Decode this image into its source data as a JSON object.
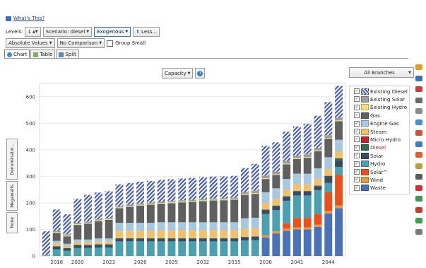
{
  "toolbar": {
    "whats_this": "What's This?",
    "levels_label": "Levels:",
    "levels_value": "1",
    "scenario": "Scenario: diesel",
    "exogenous": "Exogenous",
    "less": "Less...",
    "absolute": "Absolute Values",
    "comparison": "No Comparison",
    "group_small": "Group Small"
  },
  "tabs": [
    {
      "label": "Chart"
    },
    {
      "label": "Table"
    },
    {
      "label": "Split"
    }
  ],
  "selectors": {
    "variable": "Capacity",
    "branches": "All Branches"
  },
  "side_buttons": {
    "denominator": "Denominator...",
    "megawatts": "Megawatts",
    "none": "None"
  },
  "colors": {
    "Existing Diesel": "#4a5fa8",
    "Existing Solar": "#9e9e9e",
    "Existing Hydro": "#f2e27a",
    "Gas": "#606060",
    "Engine Gas": "#a6c8e0",
    "Steam": "#f2c06c",
    "Micro Hydro": "#c02030",
    "Diesel": "#2f6b4f",
    "Solar": "#3a4a60",
    "Hydro": "#4a9fb0",
    "Solar^": "#e8501c",
    "Wind": "#e89a40",
    "Waste": "#4a72b8"
  },
  "chart_data": {
    "type": "bar",
    "stacked": true,
    "ylim": [
      0,
      650
    ],
    "yticks": [
      0,
      100,
      200,
      300,
      400,
      500,
      600
    ],
    "xticks": [
      "2018",
      "2020",
      "2023",
      "2026",
      "2029",
      "2032",
      "2035",
      "2038",
      "2041",
      "2044"
    ],
    "x": [
      2017,
      2018,
      2019,
      2020,
      2021,
      2022,
      2023,
      2024,
      2025,
      2026,
      2027,
      2028,
      2029,
      2030,
      2031,
      2032,
      2033,
      2034,
      2035,
      2036,
      2037,
      2038,
      2039,
      2040,
      2041,
      2042,
      2043,
      2044,
      2045
    ],
    "series": [
      {
        "name": "Waste",
        "values": [
          0,
          0,
          0,
          0,
          0,
          0,
          0,
          0,
          0,
          0,
          0,
          0,
          0,
          0,
          0,
          0,
          0,
          0,
          0,
          0,
          0,
          70,
          85,
          95,
          100,
          100,
          110,
          160,
          180
        ]
      },
      {
        "name": "Wind",
        "values": [
          0,
          0,
          0,
          0,
          0,
          0,
          0,
          0,
          0,
          0,
          0,
          0,
          0,
          0,
          0,
          0,
          0,
          0,
          0,
          0,
          0,
          8,
          8,
          8,
          8,
          8,
          8,
          10,
          10
        ]
      },
      {
        "name": "Solar^",
        "values": [
          0,
          0,
          0,
          0,
          0,
          0,
          0,
          0,
          0,
          0,
          0,
          0,
          0,
          0,
          0,
          0,
          0,
          0,
          0,
          0,
          0,
          0,
          0,
          20,
          35,
          35,
          40,
          70,
          115
        ]
      },
      {
        "name": "Hydro",
        "values": [
          0,
          25,
          20,
          30,
          30,
          32,
          32,
          55,
          55,
          55,
          55,
          55,
          55,
          55,
          55,
          55,
          55,
          55,
          55,
          58,
          60,
          80,
          80,
          85,
          85,
          85,
          90,
          35,
          30
        ]
      },
      {
        "name": "Solar",
        "values": [
          0,
          10,
          8,
          10,
          10,
          10,
          10,
          10,
          10,
          10,
          10,
          10,
          10,
          10,
          10,
          10,
          10,
          10,
          10,
          12,
          12,
          15,
          15,
          15,
          15,
          15,
          15,
          22,
          25
        ]
      },
      {
        "name": "Diesel",
        "values": [
          0,
          2,
          2,
          2,
          2,
          2,
          2,
          2,
          2,
          2,
          2,
          2,
          2,
          2,
          2,
          2,
          2,
          2,
          2,
          2,
          2,
          2,
          2,
          2,
          2,
          2,
          2,
          5,
          8
        ]
      },
      {
        "name": "Micro Hydro",
        "values": [
          0,
          0,
          0,
          0,
          0,
          0,
          0,
          0,
          0,
          0,
          0,
          0,
          0,
          0,
          0,
          0,
          0,
          0,
          0,
          0,
          0,
          0,
          0,
          0,
          0,
          0,
          0,
          0,
          0
        ]
      },
      {
        "name": "Steam",
        "values": [
          0,
          10,
          8,
          10,
          10,
          10,
          10,
          28,
          28,
          28,
          28,
          30,
          30,
          30,
          30,
          30,
          30,
          30,
          30,
          30,
          30,
          25,
          25,
          25,
          25,
          25,
          25,
          25,
          25
        ]
      },
      {
        "name": "Engine Gas",
        "values": [
          0,
          10,
          8,
          10,
          10,
          12,
          12,
          30,
          30,
          30,
          30,
          30,
          30,
          30,
          30,
          30,
          30,
          30,
          30,
          40,
          40,
          40,
          40,
          40,
          40,
          40,
          40,
          45,
          45
        ]
      },
      {
        "name": "Gas",
        "values": [
          0,
          30,
          28,
          55,
          60,
          65,
          70,
          55,
          60,
          65,
          68,
          70,
          72,
          75,
          77,
          80,
          82,
          83,
          85,
          88,
          90,
          50,
          50,
          55,
          55,
          60,
          65,
          70,
          70
        ]
      },
      {
        "name": "Existing Hydro",
        "values": [
          0,
          3,
          3,
          3,
          3,
          3,
          3,
          3,
          3,
          3,
          3,
          3,
          3,
          3,
          3,
          3,
          3,
          3,
          3,
          3,
          3,
          3,
          3,
          3,
          3,
          3,
          3,
          3,
          3
        ]
      },
      {
        "name": "Existing Solar",
        "values": [
          5,
          5,
          5,
          5,
          5,
          5,
          5,
          5,
          5,
          5,
          5,
          5,
          5,
          5,
          5,
          5,
          5,
          5,
          5,
          8,
          10,
          10,
          10,
          10,
          10,
          10,
          10,
          10,
          10
        ]
      },
      {
        "name": "Existing Diesel",
        "values": [
          88,
          80,
          75,
          90,
          100,
          100,
          100,
          82,
          82,
          82,
          82,
          82,
          82,
          82,
          82,
          82,
          82,
          82,
          82,
          90,
          100,
          112,
          110,
          110,
          110,
          115,
          120,
          125,
          120
        ]
      }
    ]
  },
  "legend": [
    {
      "label": "Existing Diesel",
      "checked": true
    },
    {
      "label": "Existing Solar",
      "checked": true
    },
    {
      "label": "Existing Hydro",
      "checked": true
    },
    {
      "label": "Gas",
      "checked": true
    },
    {
      "label": "Engine Gas",
      "checked": true
    },
    {
      "label": "Steam",
      "checked": true
    },
    {
      "label": "Micro Hydro",
      "checked": true
    },
    {
      "label": "Diesel",
      "checked": true
    },
    {
      "label": "Solar",
      "checked": true
    },
    {
      "label": "Hydro",
      "checked": true
    },
    {
      "label": "Solar^",
      "checked": true
    },
    {
      "label": "Wind",
      "checked": true
    },
    {
      "label": "Waste",
      "checked": true
    }
  ]
}
